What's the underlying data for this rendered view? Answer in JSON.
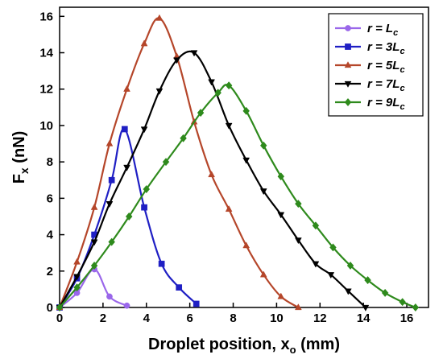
{
  "chart_data": {
    "type": "line",
    "xlabel": "Droplet position, x",
    "xlabel_sub": "o",
    "xlabel_unit": " (mm)",
    "ylabel": "F",
    "ylabel_sub": "x",
    "ylabel_unit": " (nN)",
    "xlim": [
      0,
      17
    ],
    "ylim": [
      0,
      16.5
    ],
    "xticks": [
      0,
      2,
      4,
      6,
      8,
      10,
      12,
      14,
      16
    ],
    "yticks": [
      0,
      2,
      4,
      6,
      8,
      10,
      12,
      14,
      16
    ],
    "legend_position": "top-right",
    "series": [
      {
        "name": "r = L",
        "name_sub": "c",
        "color": "#9a67ea",
        "marker": "circle",
        "x": [
          0,
          0.8,
          1.6,
          2.3,
          3.1
        ],
        "y": [
          0,
          0.8,
          2.1,
          0.6,
          0.1
        ]
      },
      {
        "name": "r = 3L",
        "name_sub": "c",
        "color": "#1f1fc4",
        "marker": "square",
        "x": [
          0,
          0.8,
          1.6,
          2.4,
          3.0,
          3.9,
          4.7,
          5.5,
          6.3
        ],
        "y": [
          0,
          1.6,
          4.0,
          7.0,
          9.8,
          5.5,
          2.4,
          1.1,
          0.2
        ]
      },
      {
        "name": "r = 5L",
        "name_sub": "c",
        "color": "#b5462a",
        "marker": "triangle-up",
        "x": [
          0,
          0.8,
          1.6,
          2.3,
          3.1,
          3.9,
          4.6,
          5.4,
          6.2,
          7.0,
          7.8,
          8.6,
          9.4,
          10.2,
          11.0
        ],
        "y": [
          0,
          2.5,
          5.5,
          9.0,
          12.0,
          14.5,
          15.9,
          13.8,
          10.2,
          7.3,
          5.4,
          3.4,
          1.8,
          0.6,
          0
        ]
      },
      {
        "name": "r = 7L",
        "name_sub": "c",
        "color": "#000000",
        "marker": "triangle-down",
        "x": [
          0,
          0.8,
          1.6,
          2.3,
          3.1,
          3.9,
          4.6,
          5.4,
          6.2,
          7.0,
          7.8,
          8.6,
          9.4,
          10.2,
          11.0,
          11.8,
          12.5,
          13.3,
          14.1
        ],
        "y": [
          0,
          1.7,
          3.6,
          5.7,
          7.7,
          9.8,
          11.9,
          13.6,
          14.0,
          12.4,
          10.0,
          8.1,
          6.4,
          5.1,
          3.7,
          2.4,
          1.8,
          0.9,
          0
        ]
      },
      {
        "name": "r = 9L",
        "name_sub": "c",
        "color": "#2e8a1c",
        "marker": "diamond",
        "x": [
          0,
          0.8,
          1.6,
          2.4,
          3.2,
          4.0,
          4.9,
          5.7,
          6.5,
          7.3,
          7.8,
          8.6,
          9.4,
          10.2,
          11.0,
          11.8,
          12.6,
          13.4,
          14.2,
          15.0,
          15.8,
          16.4
        ],
        "y": [
          0,
          1.1,
          2.3,
          3.6,
          5.0,
          6.5,
          8.0,
          9.3,
          10.7,
          11.8,
          12.2,
          10.8,
          8.9,
          7.2,
          5.7,
          4.5,
          3.3,
          2.3,
          1.5,
          0.8,
          0.3,
          0
        ]
      }
    ]
  }
}
